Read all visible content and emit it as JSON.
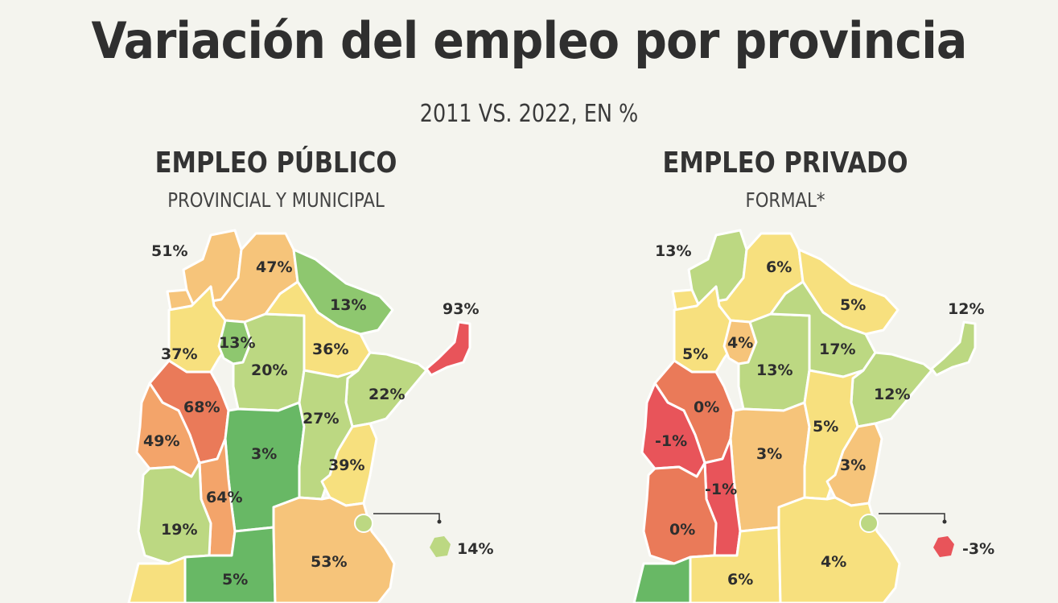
{
  "title": "Variación del empleo por provincia",
  "subtitle": "2011 VS. 2022, EN %",
  "colors": {
    "red": "#e8545a",
    "orange_red": "#ea7a59",
    "orange": "#f3a46a",
    "light_orange": "#f6c47a",
    "yellow": "#f7e07e",
    "light_green": "#bcd882",
    "green": "#8ec76f",
    "dark_green": "#68b865"
  },
  "panels": [
    {
      "title": "EMPLEO PÚBLICO",
      "subtitle": "PROVINCIAL Y MUNICIPAL",
      "values": {
        "jujuy": "51%",
        "salta": "47%",
        "formosa": "13%",
        "misiones": "93%",
        "catamarca": "37%",
        "tucuman": "13%",
        "santiago": "20%",
        "chaco": "36%",
        "corrientes": "22%",
        "larioja": "68%",
        "sanjuan": "49%",
        "cordoba": "3%",
        "santafe": "27%",
        "entrerios": "39%",
        "sanluis": "64%",
        "mendoza": "19%",
        "buenosaires": "53%",
        "lapampa": "5%",
        "caba": "14%"
      }
    },
    {
      "title": "EMPLEO PRIVADO",
      "subtitle": "FORMAL*",
      "values": {
        "jujuy": "13%",
        "salta": "6%",
        "formosa": "5%",
        "misiones": "12%",
        "catamarca": "5%",
        "tucuman": "4%",
        "santiago": "13%",
        "chaco": "17%",
        "corrientes": "12%",
        "larioja": "0%",
        "sanjuan": "-1%",
        "cordoba": "3%",
        "santafe": "5%",
        "entrerios": "3%",
        "sanluis": "-1%",
        "mendoza": "0%",
        "buenosaires": "4%",
        "lapampa": "6%",
        "caba": "-3%"
      }
    }
  ]
}
